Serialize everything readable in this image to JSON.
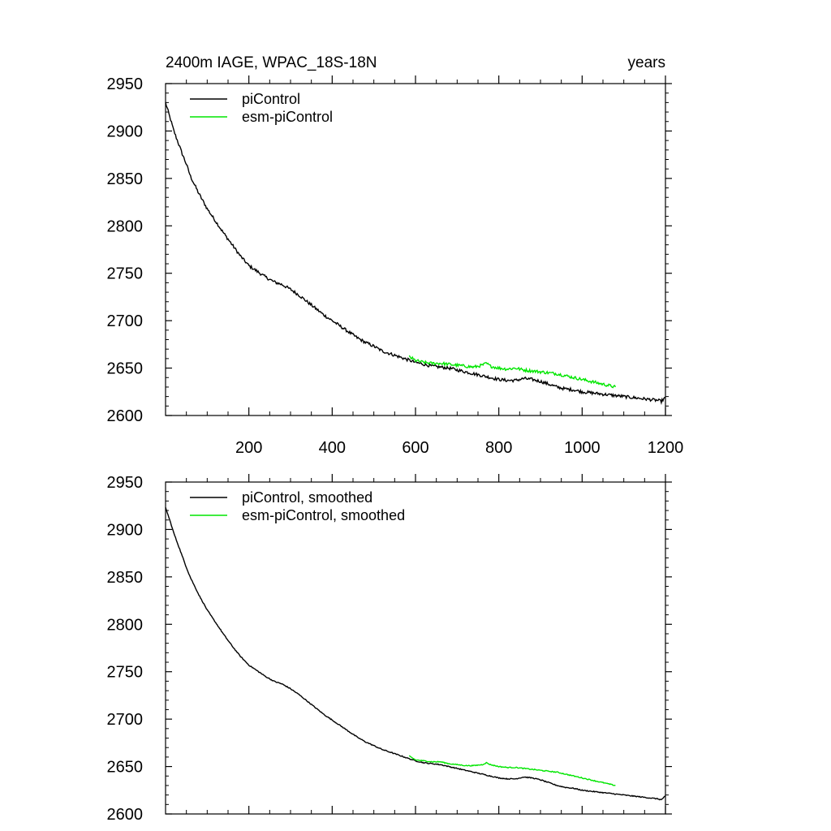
{
  "chart_data": [
    {
      "type": "line",
      "title_left": "2400m IAGE, WPAC_18S-18N",
      "title_right": "years",
      "xlim": [
        0,
        1200
      ],
      "ylim": [
        2600,
        2950
      ],
      "x_ticks": [
        "200",
        "400",
        "600",
        "800",
        "1000",
        "1200"
      ],
      "x_tick_values": [
        200,
        400,
        600,
        800,
        1000,
        1200
      ],
      "y_ticks": [
        "2600",
        "2650",
        "2700",
        "2750",
        "2800",
        "2850",
        "2900",
        "2950"
      ],
      "y_tick_values": [
        2600,
        2650,
        2700,
        2750,
        2800,
        2850,
        2900,
        2950
      ],
      "show_x_tick_labels": true,
      "grid": false,
      "legend_placement": "top-left",
      "noise": 1.6,
      "series": [
        {
          "name": "piControl",
          "color": "#000000",
          "x": [
            0,
            10,
            20,
            30,
            40,
            50,
            60,
            70,
            80,
            90,
            100,
            120,
            140,
            160,
            180,
            200,
            220,
            240,
            260,
            280,
            300,
            320,
            340,
            360,
            380,
            400,
            420,
            440,
            460,
            480,
            500,
            520,
            540,
            560,
            580,
            600,
            620,
            640,
            660,
            680,
            700,
            720,
            740,
            760,
            780,
            800,
            820,
            840,
            860,
            880,
            900,
            920,
            940,
            960,
            980,
            1000,
            1020,
            1040,
            1060,
            1080,
            1100,
            1120,
            1140,
            1160,
            1180,
            1190,
            1200
          ],
          "y": [
            2930,
            2915,
            2900,
            2888,
            2876,
            2865,
            2852,
            2843,
            2834,
            2826,
            2818,
            2805,
            2792,
            2780,
            2768,
            2758,
            2752,
            2746,
            2741,
            2738,
            2733,
            2727,
            2720,
            2713,
            2706,
            2700,
            2694,
            2688,
            2682,
            2677,
            2673,
            2668,
            2665,
            2662,
            2659,
            2656,
            2654,
            2652,
            2651,
            2650,
            2648,
            2646,
            2644,
            2642,
            2640,
            2638,
            2637,
            2637,
            2639,
            2638,
            2636,
            2633,
            2630,
            2628,
            2627,
            2625,
            2624,
            2623,
            2622,
            2621,
            2620,
            2619,
            2618,
            2617,
            2616,
            2615,
            2619
          ]
        },
        {
          "name": "esm-piControl",
          "color": "#00e600",
          "x": [
            585,
            600,
            620,
            640,
            660,
            680,
            700,
            720,
            740,
            760,
            770,
            780,
            800,
            820,
            840,
            860,
            880,
            900,
            920,
            940,
            960,
            980,
            1000,
            1020,
            1040,
            1060,
            1080
          ],
          "y": [
            2662,
            2658,
            2656,
            2655,
            2655,
            2654,
            2653,
            2652,
            2651,
            2653,
            2655,
            2652,
            2650,
            2649,
            2650,
            2648,
            2647,
            2646,
            2645,
            2644,
            2642,
            2640,
            2638,
            2636,
            2634,
            2632,
            2630
          ]
        }
      ]
    },
    {
      "type": "line",
      "xlim": [
        0,
        1200
      ],
      "ylim": [
        2600,
        2950
      ],
      "x_tick_values": [
        200,
        400,
        600,
        800,
        1000,
        1200
      ],
      "y_ticks": [
        "2600",
        "2650",
        "2700",
        "2750",
        "2800",
        "2850",
        "2900",
        "2950"
      ],
      "y_tick_values": [
        2600,
        2650,
        2700,
        2750,
        2800,
        2850,
        2900,
        2950
      ],
      "show_x_tick_labels": false,
      "grid": false,
      "legend_placement": "top-left",
      "noise": 0.5,
      "series": [
        {
          "name": "piControl, smoothed",
          "color": "#000000",
          "x": [
            0,
            10,
            20,
            30,
            40,
            50,
            60,
            70,
            80,
            90,
            100,
            120,
            140,
            160,
            180,
            200,
            220,
            240,
            260,
            280,
            300,
            320,
            340,
            360,
            380,
            400,
            420,
            440,
            460,
            480,
            500,
            520,
            540,
            560,
            580,
            600,
            620,
            640,
            660,
            680,
            700,
            720,
            740,
            760,
            780,
            800,
            820,
            840,
            860,
            880,
            900,
            920,
            940,
            960,
            980,
            1000,
            1020,
            1040,
            1060,
            1080,
            1100,
            1120,
            1140,
            1160,
            1180,
            1190,
            1200
          ],
          "y": [
            2923,
            2910,
            2896,
            2884,
            2872,
            2860,
            2849,
            2840,
            2831,
            2823,
            2815,
            2802,
            2789,
            2777,
            2766,
            2757,
            2751,
            2745,
            2740,
            2737,
            2732,
            2726,
            2719,
            2712,
            2705,
            2699,
            2693,
            2687,
            2681,
            2676,
            2672,
            2668,
            2665,
            2662,
            2659,
            2656,
            2654,
            2653,
            2652,
            2650,
            2648,
            2646,
            2644,
            2642,
            2640,
            2638,
            2637,
            2637,
            2639,
            2638,
            2636,
            2633,
            2630,
            2628,
            2627,
            2625,
            2624,
            2623,
            2622,
            2621,
            2620,
            2619,
            2618,
            2617,
            2616,
            2615,
            2619
          ]
        },
        {
          "name": "esm-piControl, smoothed",
          "color": "#00e600",
          "x": [
            585,
            600,
            620,
            640,
            660,
            680,
            700,
            720,
            740,
            760,
            770,
            780,
            800,
            820,
            840,
            860,
            880,
            900,
            920,
            940,
            960,
            980,
            1000,
            1020,
            1040,
            1060,
            1080
          ],
          "y": [
            2661,
            2657,
            2656,
            2655,
            2655,
            2653,
            2652,
            2651,
            2651,
            2652,
            2654,
            2652,
            2650,
            2649,
            2649,
            2648,
            2647,
            2646,
            2645,
            2644,
            2642,
            2640,
            2638,
            2636,
            2634,
            2632,
            2630
          ]
        }
      ]
    }
  ]
}
